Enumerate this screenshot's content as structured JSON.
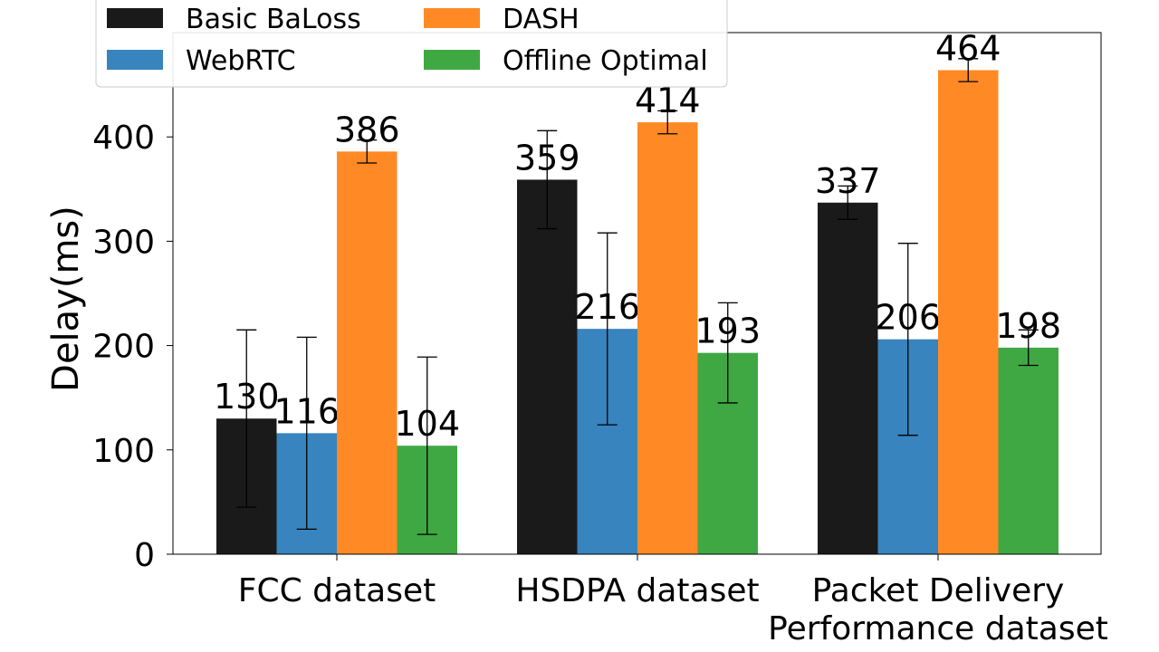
{
  "chart_data": {
    "type": "bar",
    "categories": [
      [
        "FCC dataset"
      ],
      [
        "HSDPA dataset"
      ],
      [
        "Packet Delivery",
        "Performance dataset"
      ]
    ],
    "series": [
      {
        "name": "Basic BaLoss",
        "color": "#1a1a1a",
        "values": [
          130,
          359,
          337
        ],
        "err": [
          85,
          47,
          16
        ]
      },
      {
        "name": "WebRTC",
        "color": "#3784bf",
        "values": [
          116,
          216,
          206
        ],
        "err": [
          92,
          92,
          92
        ]
      },
      {
        "name": "DASH",
        "color": "#ff8a25",
        "values": [
          386,
          414,
          464
        ],
        "err": [
          11,
          11,
          11
        ]
      },
      {
        "name": "Offline Optimal",
        "color": "#3fa843",
        "values": [
          104,
          193,
          198
        ],
        "err": [
          85,
          48,
          17
        ]
      }
    ],
    "data_labels": [
      [
        "130",
        "359",
        "337"
      ],
      [
        "116",
        "216",
        "206"
      ],
      [
        "386",
        "414",
        "464"
      ],
      [
        "104",
        "193",
        "198"
      ]
    ],
    "xlabel": "",
    "ylabel": "Delay(ms)",
    "ylim": [
      0,
      500
    ],
    "yticks": [
      0,
      100,
      200,
      300,
      400
    ],
    "legend": {
      "placement": "top-left",
      "columns": 2
    },
    "grid": false
  }
}
